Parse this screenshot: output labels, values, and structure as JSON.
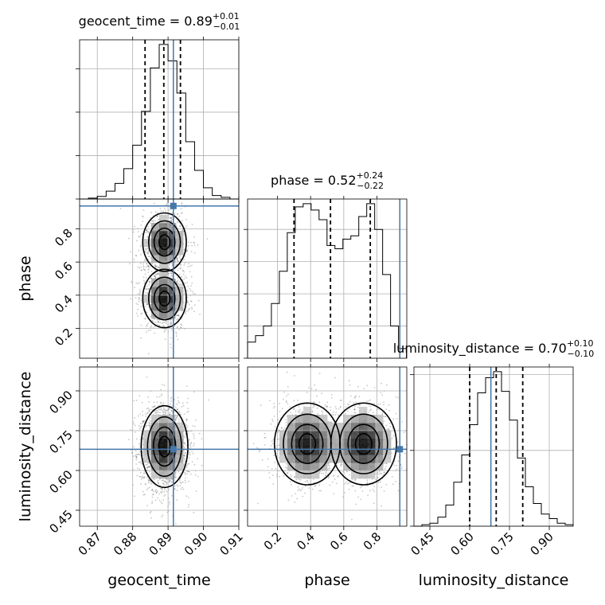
{
  "chart_data": {
    "type": "corner",
    "parameters": [
      "geocent_time",
      "phase",
      "luminosity_distance"
    ],
    "truths": {
      "geocent_time": 0.8915,
      "phase": 0.938,
      "luminosity_distance": 0.68
    },
    "diagonal": [
      {
        "param": "geocent_time",
        "title_main": "geocent_time = 0.89",
        "title_sup": "+0.01",
        "title_sub": "−0.01",
        "xlim": [
          0.865,
          0.91
        ],
        "bin_edges": [
          0.865,
          0.8675,
          0.87,
          0.8725,
          0.875,
          0.8775,
          0.88,
          0.8825,
          0.885,
          0.8875,
          0.89,
          0.8925,
          0.895,
          0.8975,
          0.9,
          0.9025,
          0.905,
          0.9075,
          0.91
        ],
        "counts": [
          0,
          1,
          3,
          9,
          18,
          35,
          62,
          101,
          151,
          178,
          159,
          122,
          66,
          33,
          13,
          4,
          2,
          0
        ],
        "quantiles": [
          0.8835,
          0.8888,
          0.8935
        ]
      },
      {
        "param": "phase",
        "title_main": "phase = 0.52",
        "title_sup": "+0.24",
        "title_sub": "−0.22",
        "xlim": [
          0.02,
          0.98
        ],
        "bin_edges": [
          0.02,
          0.0679,
          0.1158,
          0.1637,
          0.2116,
          0.2595,
          0.3074,
          0.3553,
          0.4032,
          0.4511,
          0.499,
          0.5469,
          0.5948,
          0.6427,
          0.6906,
          0.7385,
          0.7864,
          0.8343,
          0.8822,
          0.9301,
          0.978
        ],
        "counts": [
          5,
          7,
          10,
          17,
          27,
          39,
          47,
          48,
          46,
          43,
          35,
          34,
          37,
          38,
          44,
          48,
          40,
          26,
          10,
          3
        ],
        "quantiles": [
          0.3,
          0.52,
          0.76
        ]
      },
      {
        "param": "luminosity_distance",
        "title_main": "luminosity_distance = 0.70",
        "title_sup": "+0.10",
        "title_sub": "−0.10",
        "xlim": [
          0.39,
          0.99
        ],
        "bin_edges": [
          0.39,
          0.42,
          0.45,
          0.48,
          0.51,
          0.54,
          0.57,
          0.6,
          0.63,
          0.66,
          0.69,
          0.72,
          0.75,
          0.78,
          0.81,
          0.84,
          0.87,
          0.9,
          0.93,
          0.96,
          0.99
        ],
        "counts": [
          0,
          1,
          2,
          6,
          14,
          29,
          47,
          67,
          88,
          98,
          102,
          89,
          70,
          45,
          26,
          15,
          8,
          5,
          2,
          1
        ],
        "quantiles": [
          0.6,
          0.7,
          0.8
        ]
      }
    ],
    "joint": [
      {
        "x": "geocent_time",
        "y": "phase",
        "xlim": [
          0.865,
          0.91
        ],
        "ylim": [
          0.02,
          0.98
        ],
        "modes": [
          {
            "x": 0.889,
            "y": 0.72,
            "sx": 0.0028,
            "sy": 0.08,
            "w": 1
          },
          {
            "x": 0.889,
            "y": 0.38,
            "sx": 0.0028,
            "sy": 0.08,
            "w": 1
          }
        ]
      },
      {
        "x": "geocent_time",
        "y": "luminosity_distance",
        "xlim": [
          0.865,
          0.91
        ],
        "ylim": [
          0.39,
          0.99
        ],
        "modes": [
          {
            "x": 0.889,
            "y": 0.69,
            "sx": 0.003,
            "sy": 0.07,
            "w": 1
          }
        ]
      },
      {
        "x": "phase",
        "y": "luminosity_distance",
        "xlim": [
          0.02,
          0.98
        ],
        "ylim": [
          0.39,
          0.99
        ],
        "modes": [
          {
            "x": 0.38,
            "y": 0.7,
            "sx": 0.09,
            "sy": 0.07,
            "w": 1
          },
          {
            "x": 0.72,
            "y": 0.7,
            "sx": 0.09,
            "sy": 0.07,
            "w": 1
          }
        ]
      }
    ],
    "axes": {
      "x_labels": [
        "geocent_time",
        "phase",
        "luminosity_distance"
      ],
      "y_labels": [
        "phase",
        "luminosity_distance"
      ],
      "x_ticks": [
        [
          "0.87",
          "0.88",
          "0.89",
          "0.90",
          "0.91"
        ],
        [
          "0.2",
          "0.4",
          "0.6",
          "0.8"
        ],
        [
          "0.45",
          "0.60",
          "0.75",
          "0.90"
        ]
      ],
      "x_tick_values": [
        [
          0.87,
          0.88,
          0.89,
          0.9,
          0.91
        ],
        [
          0.2,
          0.4,
          0.6,
          0.8
        ],
        [
          0.45,
          0.6,
          0.75,
          0.9
        ]
      ],
      "y_ticks": [
        [
          "0.2",
          "0.4",
          "0.6",
          "0.8"
        ],
        [
          "0.45",
          "0.60",
          "0.75",
          "0.90"
        ]
      ],
      "y_tick_values": [
        [
          0.2,
          0.4,
          0.6,
          0.8
        ],
        [
          0.45,
          0.6,
          0.75,
          0.9
        ]
      ]
    },
    "colors": {
      "truth": "#4477aa",
      "lines": "#000000"
    },
    "grid": true
  }
}
